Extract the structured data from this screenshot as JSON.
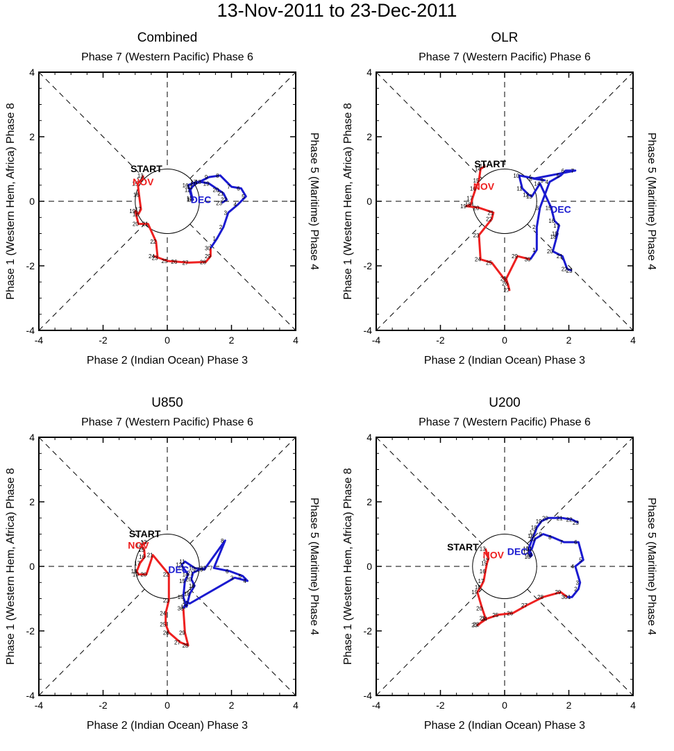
{
  "title": "13-Nov-2011 to 23-Dec-2011",
  "colors": {
    "nov": "#ee2020",
    "dec": "#1a1ad0",
    "frame": "#000000",
    "start": "#000000"
  },
  "labels": {
    "top": "Phase 7 (Western Pacific) Phase 6",
    "bottom": "Phase 2 (Indian Ocean) Phase 3",
    "left": "Phase 1 (Western Hem, Africa) Phase 8",
    "right": "Phase 5 (Maritime) Phase 4",
    "start": "START",
    "nov": "NOV",
    "dec": "DEC"
  },
  "chart_data": [
    {
      "type": "line",
      "panel": "Combined",
      "xlim": [
        -4,
        4
      ],
      "ylim": [
        -4,
        4
      ],
      "xticks": [
        "-4",
        "-2",
        "0",
        "2",
        "4"
      ],
      "yticks": [
        "-4",
        "-2",
        "0",
        "2",
        "4"
      ],
      "grid": "dashed diagonals and axes, unit circle",
      "start_label_pos": [
        -0.65,
        0.9
      ],
      "nov_label_pos": [
        -0.75,
        0.5
      ],
      "dec_label_pos": [
        1.05,
        -0.05
      ],
      "series": [
        {
          "name": "NOV",
          "color": "#ee2020",
          "days": [
            "13",
            "14",
            "15",
            "16",
            "17",
            "18",
            "19",
            "20",
            "21",
            "22",
            "23",
            "24",
            "25",
            "26",
            "27",
            "28",
            "29",
            "30"
          ],
          "x": [
            -0.75,
            -0.78,
            -0.92,
            -0.88,
            -0.82,
            -0.9,
            -1.0,
            -0.9,
            -0.6,
            -0.35,
            -0.3,
            -0.4,
            0.0,
            0.3,
            0.65,
            1.2,
            1.35,
            1.35
          ],
          "y": [
            0.8,
            0.67,
            0.55,
            0.2,
            -0.25,
            -0.4,
            -0.3,
            -0.7,
            -0.7,
            -1.25,
            -1.75,
            -1.7,
            -1.85,
            -1.87,
            -1.9,
            -1.88,
            -1.7,
            -1.45
          ]
        },
        {
          "name": "DEC",
          "color": "#1a1ad0",
          "days": [
            "1",
            "2",
            "3",
            "4",
            "5",
            "6",
            "7",
            "8",
            "9",
            "10",
            "11",
            "12",
            "13",
            "14",
            "15",
            "16",
            "17",
            "18",
            "19",
            "20",
            "21",
            "22",
            "23"
          ],
          "x": [
            1.55,
            1.75,
            1.9,
            2.2,
            2.45,
            2.3,
            2.0,
            1.65,
            1.3,
            0.9,
            0.78,
            0.72,
            0.78,
            0.8,
            0.78,
            0.65,
            0.9,
            1.05,
            1.3,
            1.6,
            1.75,
            1.85,
            1.7
          ],
          "y": [
            -1.15,
            -0.8,
            -0.35,
            -0.1,
            0.15,
            0.4,
            0.45,
            0.8,
            0.75,
            0.55,
            0.45,
            0.35,
            0.1,
            0.05,
            0.05,
            0.5,
            0.6,
            0.6,
            0.55,
            0.35,
            0.25,
            0.05,
            -0.05
          ]
        }
      ]
    },
    {
      "type": "line",
      "panel": "OLR",
      "xlim": [
        -4,
        4
      ],
      "ylim": [
        -4,
        4
      ],
      "xticks": [
        "-4",
        "-2",
        "0",
        "2",
        "4"
      ],
      "yticks": [
        "-4",
        "-2",
        "0",
        "2",
        "4"
      ],
      "grid": "dashed diagonals and axes, unit circle",
      "start_label_pos": [
        -0.45,
        1.05
      ],
      "nov_label_pos": [
        -0.65,
        0.35
      ],
      "dec_label_pos": [
        1.75,
        -0.35
      ],
      "series": [
        {
          "name": "NOV",
          "color": "#ee2020",
          "days": [
            "13",
            "14",
            "15",
            "16",
            "17",
            "18",
            "19",
            "20",
            "21",
            "22",
            "23",
            "24",
            "25",
            "26",
            "27",
            "28",
            "29",
            "30"
          ],
          "x": [
            -0.6,
            -0.75,
            -0.8,
            -0.9,
            -1.0,
            -1.05,
            -1.2,
            -0.8,
            -0.35,
            -0.4,
            -0.8,
            -0.75,
            -0.4,
            0.1,
            0.15,
            0.05,
            0.4,
            0.8
          ],
          "y": [
            1.1,
            1.0,
            0.65,
            0.4,
            0.1,
            -0.1,
            -0.15,
            -0.2,
            -0.35,
            -0.55,
            -1.05,
            -1.8,
            -1.9,
            -2.55,
            -2.75,
            -2.4,
            -1.7,
            -1.8
          ]
        },
        {
          "name": "DEC",
          "color": "#1a1ad0",
          "days": [
            "1",
            "2",
            "3",
            "4",
            "5",
            "6",
            "7",
            "8",
            "9",
            "10",
            "11",
            "12",
            "13",
            "14",
            "15",
            "16",
            "17",
            "18",
            "19",
            "20",
            "21",
            "22",
            "23"
          ],
          "x": [
            1.0,
            1.0,
            1.1,
            1.4,
            1.75,
            1.9,
            2.2,
            0.9,
            1.25,
            0.45,
            0.55,
            0.75,
            0.85,
            1.1,
            1.45,
            1.55,
            1.7,
            1.6,
            1.65,
            1.5,
            1.8,
            1.95,
            2.1
          ],
          "y": [
            -1.5,
            -0.8,
            -0.2,
            0.6,
            0.8,
            0.95,
            0.95,
            0.7,
            0.65,
            0.8,
            0.4,
            0.2,
            0.15,
            0.55,
            -0.2,
            -0.6,
            -0.75,
            -1.1,
            -1.0,
            -1.55,
            -1.7,
            -2.1,
            -2.15
          ]
        }
      ]
    },
    {
      "type": "line",
      "panel": "U850",
      "xlim": [
        -4,
        4
      ],
      "ylim": [
        -4,
        4
      ],
      "xticks": [
        "-4",
        "-2",
        "0",
        "2",
        "4"
      ],
      "yticks": [
        "-4",
        "-2",
        "0",
        "2",
        "4"
      ],
      "grid": "dashed diagonals and axes, unit circle",
      "start_label_pos": [
        -0.7,
        0.9
      ],
      "nov_label_pos": [
        -0.9,
        0.55
      ],
      "dec_label_pos": [
        0.35,
        -0.2
      ],
      "series": [
        {
          "name": "NOV",
          "color": "#ee2020",
          "days": [
            "13",
            "14",
            "15",
            "16",
            "17",
            "18",
            "19",
            "20",
            "21",
            "22",
            "23",
            "24",
            "25",
            "26",
            "27",
            "28",
            "29",
            "30"
          ],
          "x": [
            -0.65,
            -0.8,
            -0.72,
            -0.7,
            -0.85,
            -0.95,
            -0.9,
            -0.65,
            -0.45,
            0.05,
            0.05,
            -0.05,
            -0.05,
            0.05,
            0.4,
            0.65,
            0.55,
            0.5
          ],
          "y": [
            0.75,
            0.65,
            0.52,
            0.3,
            0.1,
            -0.15,
            -0.25,
            -0.25,
            0.35,
            -0.25,
            -1.05,
            -1.45,
            -1.8,
            -2.05,
            -2.35,
            -2.45,
            -2.05,
            -1.3
          ]
        },
        {
          "name": "DEC",
          "color": "#1a1ad0",
          "days": [
            "1",
            "2",
            "3",
            "4",
            "5",
            "6",
            "7",
            "8",
            "9",
            "10",
            "11",
            "12",
            "13",
            "14",
            "15",
            "16",
            "17",
            "18",
            "19",
            "20",
            "21",
            "22",
            "23"
          ],
          "x": [
            0.6,
            0.7,
            2.1,
            2.5,
            2.35,
            1.95,
            1.45,
            1.8,
            1.15,
            0.85,
            0.55,
            0.45,
            0.5,
            0.65,
            0.55,
            0.5,
            0.6,
            0.7,
            0.85,
            0.75,
            0.8,
            1.0,
            1.2
          ],
          "y": [
            -1.1,
            -1.15,
            -0.35,
            -0.45,
            -0.3,
            -0.15,
            -0.05,
            0.8,
            -0.1,
            -0.05,
            0.15,
            0.05,
            -0.05,
            -0.25,
            -0.45,
            -0.95,
            -1.25,
            -0.85,
            -0.6,
            -0.4,
            -0.2,
            -0.1,
            -0.05
          ]
        }
      ]
    },
    {
      "type": "line",
      "panel": "U200",
      "xlim": [
        -4,
        4
      ],
      "ylim": [
        -4,
        4
      ],
      "xticks": [
        "-4",
        "-2",
        "0",
        "2",
        "4"
      ],
      "yticks": [
        "-4",
        "-2",
        "0",
        "2",
        "4"
      ],
      "grid": "dashed diagonals and axes, unit circle",
      "start_label_pos": [
        -1.3,
        0.5
      ],
      "nov_label_pos": [
        -0.35,
        0.25
      ],
      "dec_label_pos": [
        0.4,
        0.35
      ],
      "series": [
        {
          "name": "NOV",
          "color": "#ee2020",
          "days": [
            "13",
            "14",
            "15",
            "16",
            "17",
            "18",
            "19",
            "20",
            "21",
            "22",
            "23",
            "24",
            "25",
            "26",
            "27",
            "28",
            "29",
            "30"
          ],
          "x": [
            -0.6,
            -0.5,
            -0.55,
            -0.6,
            -0.65,
            -0.75,
            -0.85,
            -0.7,
            -0.6,
            -0.8,
            -0.85,
            -0.55,
            -0.2,
            0.25,
            0.7,
            1.2,
            1.75,
            1.95
          ],
          "y": [
            0.55,
            0.25,
            0.1,
            -0.15,
            -0.45,
            -0.65,
            -0.8,
            -1.3,
            -1.6,
            -1.8,
            -1.82,
            -1.62,
            -1.5,
            -1.45,
            -1.2,
            -0.95,
            -0.8,
            -0.95
          ]
        },
        {
          "name": "DEC",
          "color": "#1a1ad0",
          "days": [
            "1",
            "2",
            "3",
            "4",
            "5",
            "6",
            "7",
            "8",
            "9",
            "10",
            "11",
            "12",
            "13",
            "14",
            "15",
            "16",
            "17",
            "18",
            "19",
            "20",
            "21",
            "22",
            "23"
          ],
          "x": [
            2.1,
            2.3,
            2.35,
            2.2,
            2.45,
            2.3,
            1.85,
            1.5,
            1.2,
            0.95,
            0.85,
            0.75,
            0.8,
            0.85,
            0.75,
            0.9,
            0.95,
            1.0,
            1.15,
            1.35,
            1.8,
            2.1,
            2.3
          ],
          "y": [
            -0.95,
            -0.7,
            -0.5,
            0.0,
            0.2,
            0.75,
            0.75,
            0.9,
            1.0,
            0.85,
            0.55,
            0.45,
            0.3,
            0.35,
            0.55,
            0.95,
            1.05,
            1.2,
            1.4,
            1.5,
            1.5,
            1.45,
            1.35
          ]
        }
      ]
    }
  ]
}
